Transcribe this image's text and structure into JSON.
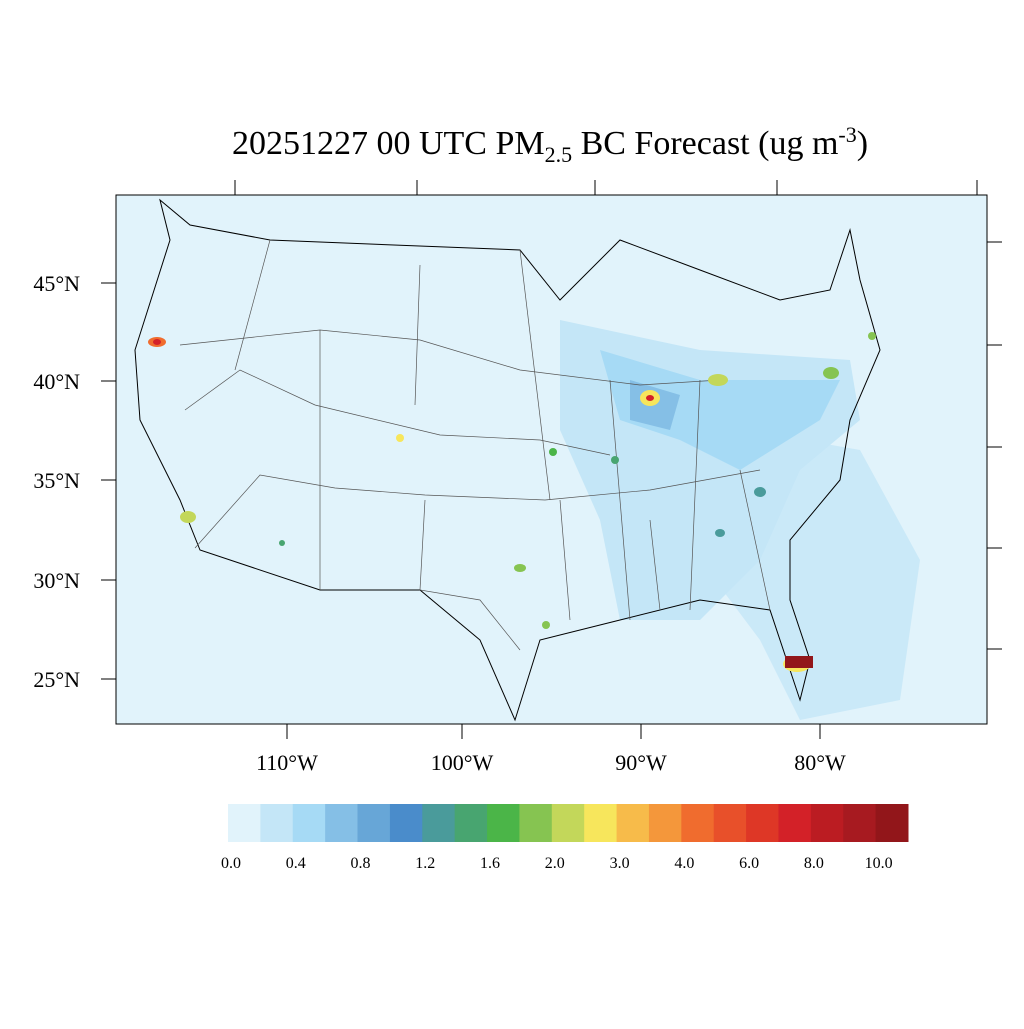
{
  "header": {
    "title": {
      "main": "20251227 00 UTC PM",
      "sub": "2.5",
      "rest": " BC Forecast (ug m",
      "sup": "-3",
      "end": ")"
    }
  },
  "axes": {
    "lat_labels": [
      "45°N",
      "40°N",
      "35°N",
      "30°N",
      "25°N"
    ],
    "lon_labels": [
      "110°W",
      "100°W",
      "90°W",
      "80°W"
    ]
  },
  "colorbar": {
    "colors": [
      "#e1f3fb",
      "#c4e6f7",
      "#a6daf5",
      "#85bfe6",
      "#67a6d7",
      "#4a8ccb",
      "#4a9b9b",
      "#48a570",
      "#4bb548",
      "#86c451",
      "#c3d75a",
      "#f7e65c",
      "#f7bb4a",
      "#f4973b",
      "#f06c2e",
      "#e8502a",
      "#de3726",
      "#d32128",
      "#bb1c22",
      "#a71a20",
      "#92161a"
    ],
    "labels": [
      "0.0",
      "0.4",
      "0.8",
      "1.2",
      "1.6",
      "2.0",
      "3.0",
      "4.0",
      "6.0",
      "8.0",
      "10.0"
    ]
  }
}
